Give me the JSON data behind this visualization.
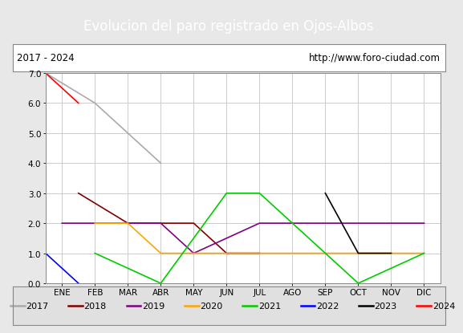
{
  "title": "Evolucion del paro registrado en Ojos-Albos",
  "subtitle_left": "2017 - 2024",
  "subtitle_right": "http://www.foro-ciudad.com",
  "x_labels": [
    "ENE",
    "FEB",
    "MAR",
    "ABR",
    "MAY",
    "JUN",
    "JUL",
    "AGO",
    "SEP",
    "OCT",
    "NOV",
    "DIC"
  ],
  "ylim": [
    0.0,
    7.0
  ],
  "yticks": [
    0.0,
    1.0,
    2.0,
    3.0,
    4.0,
    5.0,
    6.0,
    7.0
  ],
  "series_data": {
    "2017": {
      "x": [
        -0.5,
        1,
        2,
        3
      ],
      "y": [
        7,
        6,
        5,
        4
      ]
    },
    "2018": {
      "x": [
        0.5,
        2,
        3,
        4,
        5,
        6
      ],
      "y": [
        3,
        2,
        2,
        2,
        1,
        1
      ]
    },
    "2019": {
      "x": [
        0,
        1,
        3,
        4,
        6,
        7,
        8,
        9,
        10,
        11
      ],
      "y": [
        2,
        2,
        2,
        1,
        2,
        2,
        2,
        2,
        2,
        2
      ]
    },
    "2020": {
      "x": [
        1,
        2,
        3,
        4,
        5,
        6,
        7,
        8,
        9,
        10,
        11
      ],
      "y": [
        2,
        2,
        1,
        1,
        1,
        1,
        1,
        1,
        1,
        1,
        1
      ]
    },
    "2021": {
      "x": [
        1,
        3,
        5,
        6,
        7,
        9,
        11
      ],
      "y": [
        1,
        0,
        3,
        3,
        2,
        0,
        1
      ]
    },
    "2022": {
      "x": [
        -0.5,
        0.5
      ],
      "y": [
        1,
        0
      ]
    },
    "2023": {
      "x": [
        8,
        9,
        10
      ],
      "y": [
        3,
        1,
        1
      ]
    },
    "2024": {
      "x": [
        -0.5,
        0.5
      ],
      "y": [
        7,
        6
      ]
    }
  },
  "colors": {
    "2017": "#aaaaaa",
    "2018": "#800000",
    "2019": "#800080",
    "2020": "#ffa500",
    "2021": "#00cc00",
    "2022": "#0000ff",
    "2023": "#000000",
    "2024": "#ff0000"
  },
  "legend_order": [
    "2017",
    "2018",
    "2019",
    "2020",
    "2021",
    "2022",
    "2023",
    "2024"
  ],
  "bg_color": "#e8e8e8",
  "plot_bg_color": "#ffffff",
  "title_bg_color": "#4472c4",
  "title_text_color": "#ffffff",
  "subtitle_bg_color": "#ffffff",
  "legend_bg_color": "#e0e0e0",
  "grid_color": "#cccccc",
  "title_fontsize": 12,
  "subtitle_fontsize": 8.5,
  "tick_fontsize": 7.5,
  "legend_fontsize": 8
}
